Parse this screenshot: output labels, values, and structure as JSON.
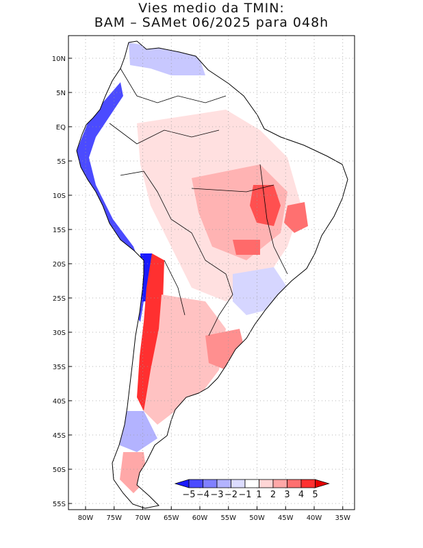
{
  "title": {
    "line1": "Vies medio da TMIN:",
    "line2": "BAM – SAMet 06/2025  para 048h"
  },
  "axes": {
    "lat_ticks": [
      "10N",
      "5N",
      "EQ",
      "5S",
      "10S",
      "15S",
      "20S",
      "25S",
      "30S",
      "35S",
      "40S",
      "45S",
      "50S",
      "55S"
    ],
    "lon_ticks": [
      "80W",
      "75W",
      "70W",
      "65W",
      "60W",
      "55W",
      "50W",
      "45W",
      "40W",
      "35W"
    ],
    "lat_range": [
      -56,
      13
    ],
    "lon_range": [
      -83,
      -34
    ]
  },
  "colorbar": {
    "labels": [
      "−5",
      "−4",
      "−3",
      "−2",
      "−1",
      "1",
      "2",
      "3",
      "4",
      "5"
    ],
    "colors": [
      "#1a1aff",
      "#4b4bff",
      "#8080ff",
      "#b3b3ff",
      "#dcdcff",
      "#ffffff",
      "#ffd6d6",
      "#ffa8a8",
      "#ff7070",
      "#ff3030",
      "#e60000"
    ]
  },
  "colors": {
    "grid": "#9a9a9a",
    "border": "#000000",
    "land_base": "#ffffff"
  }
}
